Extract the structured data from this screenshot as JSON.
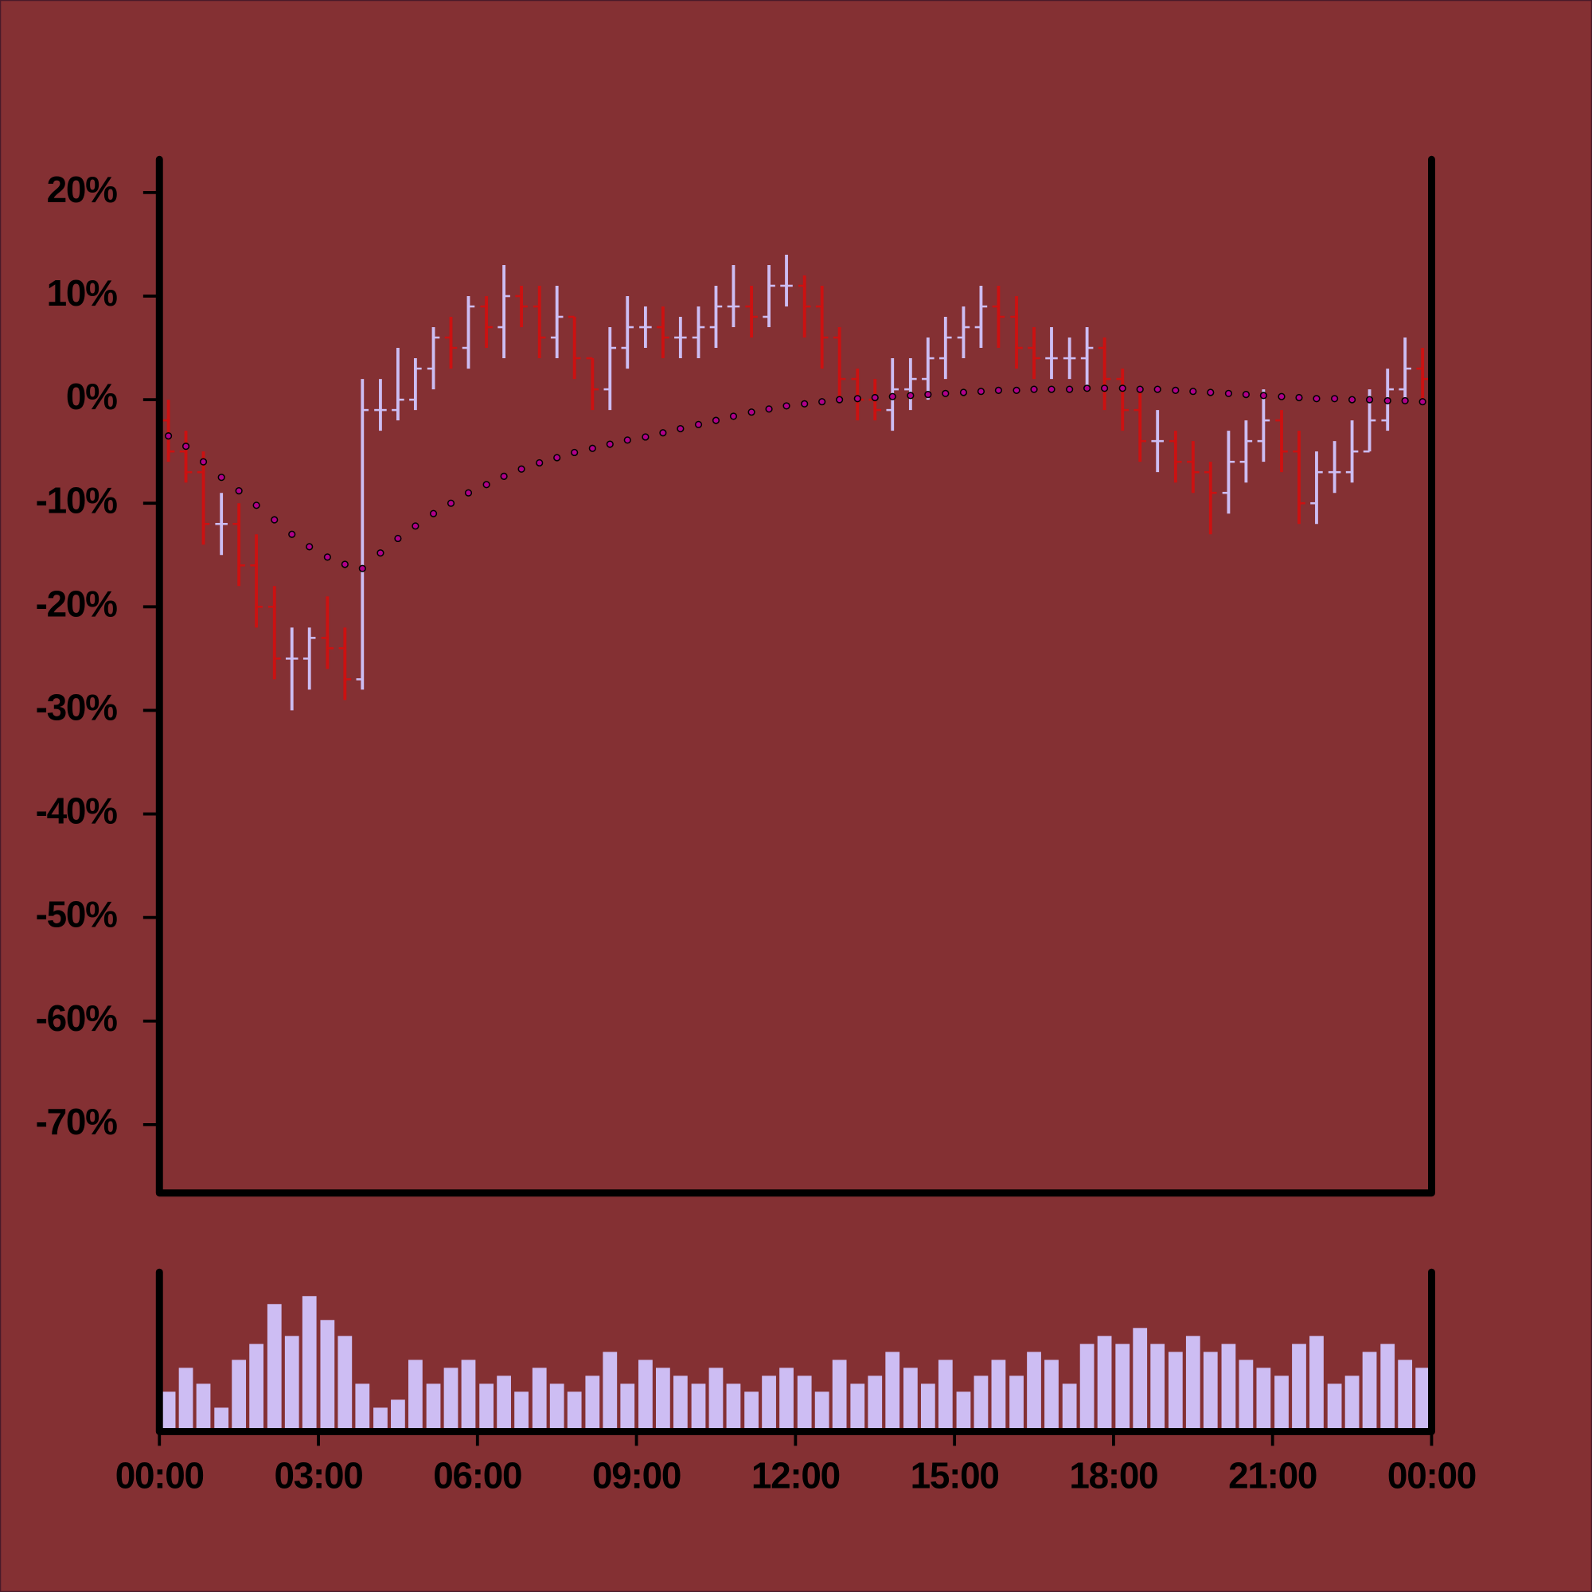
{
  "chart_data": {
    "type": "ohlc",
    "x": [
      0.17,
      0.5,
      0.83,
      1.17,
      1.5,
      1.83,
      2.17,
      2.5,
      2.83,
      3.17,
      3.5,
      3.83,
      4.17,
      4.5,
      4.83,
      5.17,
      5.5,
      5.83,
      6.17,
      6.5,
      6.83,
      7.17,
      7.5,
      7.83,
      8.17,
      8.5,
      8.83,
      9.17,
      9.5,
      9.83,
      10.17,
      10.5,
      10.83,
      11.17,
      11.5,
      11.83,
      12.17,
      12.5,
      12.83,
      13.17,
      13.5,
      13.83,
      14.17,
      14.5,
      14.83,
      15.17,
      15.5,
      15.83,
      16.17,
      16.5,
      16.83,
      17.17,
      17.5,
      17.83,
      18.17,
      18.5,
      18.83,
      19.17,
      19.5,
      19.83,
      20.17,
      20.5,
      20.83,
      21.17,
      21.5,
      21.83,
      22.17,
      22.5,
      22.83,
      23.17,
      23.5,
      23.83
    ],
    "open": [
      -2,
      -5,
      -7,
      -12,
      -12,
      -16,
      -20,
      -25,
      -25,
      -23,
      -24,
      -27,
      -1,
      -1,
      0,
      3,
      6,
      5,
      9,
      7,
      10,
      9,
      6,
      8,
      4,
      1,
      5,
      7,
      7,
      6,
      6,
      7,
      9,
      9,
      8,
      11,
      11,
      9,
      6,
      2,
      0,
      -1,
      1,
      2,
      4,
      6,
      7,
      9,
      8,
      5,
      4,
      4,
      4,
      5,
      2,
      -1,
      -4,
      -4,
      -6,
      -7,
      -9,
      -6,
      -4,
      -2,
      -5,
      -10,
      -7,
      -7,
      -5,
      -2,
      1,
      3
    ],
    "high": [
      0,
      -3,
      -5,
      -9,
      -10,
      -13,
      -18,
      -22,
      -22,
      -19,
      -22,
      2,
      2,
      5,
      4,
      7,
      8,
      10,
      10,
      13,
      11,
      11,
      11,
      8,
      4,
      7,
      10,
      9,
      9,
      8,
      9,
      11,
      13,
      11,
      13,
      14,
      12,
      11,
      7,
      3,
      2,
      4,
      4,
      6,
      8,
      9,
      11,
      11,
      10,
      7,
      7,
      6,
      7,
      6,
      3,
      1,
      -1,
      -3,
      -4,
      -6,
      -3,
      -2,
      1,
      -1,
      -3,
      -5,
      -4,
      -2,
      1,
      3,
      6,
      5
    ],
    "low": [
      -6,
      -8,
      -14,
      -15,
      -18,
      -22,
      -27,
      -30,
      -28,
      -26,
      -29,
      -28,
      -3,
      -2,
      -1,
      1,
      3,
      3,
      5,
      4,
      7,
      4,
      4,
      2,
      -1,
      -1,
      3,
      5,
      4,
      4,
      4,
      5,
      7,
      6,
      7,
      9,
      6,
      3,
      0,
      -2,
      -2,
      -3,
      -1,
      0,
      2,
      4,
      5,
      5,
      3,
      2,
      2,
      2,
      1,
      -1,
      -3,
      -6,
      -7,
      -8,
      -9,
      -13,
      -11,
      -8,
      -6,
      -7,
      -12,
      -12,
      -9,
      -8,
      -5,
      -3,
      0,
      0
    ],
    "close": [
      -5,
      -7,
      -12,
      -12,
      -16,
      -20,
      -25,
      -25,
      -23,
      -24,
      -27,
      -1,
      -1,
      0,
      3,
      6,
      5,
      9,
      7,
      10,
      9,
      6,
      8,
      4,
      1,
      5,
      7,
      7,
      6,
      6,
      7,
      9,
      9,
      8,
      11,
      11,
      9,
      6,
      2,
      0,
      -1,
      1,
      2,
      4,
      6,
      7,
      9,
      8,
      5,
      4,
      4,
      4,
      5,
      2,
      -1,
      -4,
      -4,
      -6,
      -7,
      -9,
      -6,
      -4,
      -2,
      -5,
      -10,
      -7,
      -7,
      -5,
      -2,
      1,
      3,
      2
    ],
    "moving_average": [
      -3.5,
      -4.5,
      -6,
      -7.5,
      -8.8,
      -10.2,
      -11.6,
      -13,
      -14.2,
      -15.2,
      -15.9,
      -16.3,
      -14.8,
      -13.4,
      -12.2,
      -11,
      -10,
      -9,
      -8.2,
      -7.4,
      -6.7,
      -6.1,
      -5.6,
      -5.1,
      -4.7,
      -4.3,
      -3.9,
      -3.6,
      -3.2,
      -2.8,
      -2.4,
      -2,
      -1.6,
      -1.2,
      -0.9,
      -0.6,
      -0.4,
      -0.2,
      0,
      0.1,
      0.2,
      0.3,
      0.4,
      0.5,
      0.6,
      0.7,
      0.8,
      0.9,
      0.9,
      1,
      1,
      1,
      1.1,
      1.1,
      1.1,
      1,
      1,
      0.9,
      0.8,
      0.7,
      0.6,
      0.5,
      0.4,
      0.3,
      0.2,
      0.1,
      0.1,
      0,
      0,
      -0.1,
      -0.1,
      -0.2
    ],
    "volume": [
      25,
      40,
      30,
      15,
      45,
      55,
      80,
      60,
      85,
      70,
      60,
      30,
      15,
      20,
      45,
      30,
      40,
      45,
      30,
      35,
      25,
      40,
      30,
      25,
      35,
      50,
      30,
      45,
      40,
      35,
      30,
      40,
      30,
      25,
      35,
      40,
      35,
      25,
      45,
      30,
      35,
      50,
      40,
      30,
      45,
      25,
      35,
      45,
      35,
      50,
      45,
      30,
      55,
      60,
      55,
      65,
      55,
      50,
      60,
      50,
      55,
      45,
      40,
      35,
      55,
      60,
      30,
      35,
      50,
      55,
      45,
      40
    ],
    "up_color": "#cdbdf3",
    "down_color": "#cc1111",
    "ma_color": "#b0008a",
    "volume_color": "#cdbdf3",
    "xlim": [
      0,
      24
    ],
    "xticks": [
      {
        "value": 0,
        "label": "00:00"
      },
      {
        "value": 3,
        "label": "03:00"
      },
      {
        "value": 6,
        "label": "06:00"
      },
      {
        "value": 9,
        "label": "09:00"
      },
      {
        "value": 12,
        "label": "12:00"
      },
      {
        "value": 15,
        "label": "15:00"
      },
      {
        "value": 18,
        "label": "18:00"
      },
      {
        "value": 21,
        "label": "21:00"
      },
      {
        "value": 24,
        "label": "00:00"
      }
    ],
    "ylim": [
      -76.6,
      23.2
    ],
    "yticks": [
      {
        "value": 20,
        "label": "20%"
      },
      {
        "value": 10,
        "label": "10%"
      },
      {
        "value": 0,
        "label": "0%"
      },
      {
        "value": -10,
        "label": "-10%"
      },
      {
        "value": -20,
        "label": "-20%"
      },
      {
        "value": -30,
        "label": "-30%"
      },
      {
        "value": -40,
        "label": "-40%"
      },
      {
        "value": -50,
        "label": "-50%"
      },
      {
        "value": -60,
        "label": "-60%"
      },
      {
        "value": -70,
        "label": "-70%"
      }
    ],
    "volume_ylim": [
      0,
      100
    ]
  }
}
